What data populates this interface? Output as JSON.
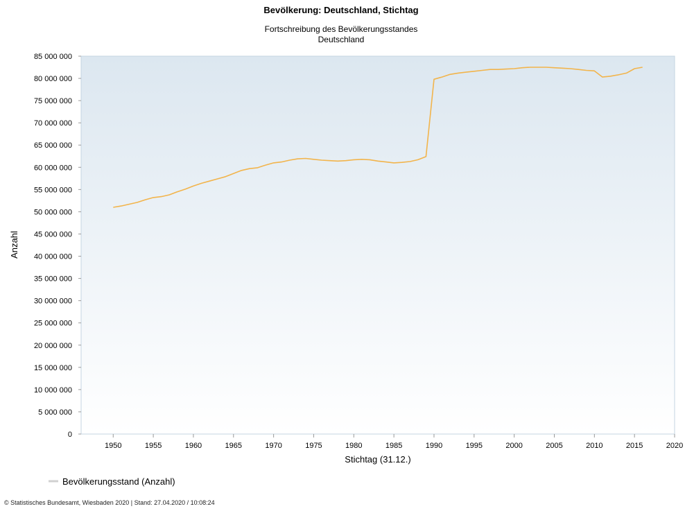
{
  "chart_data": {
    "type": "line",
    "title": "Bevölkerung: Deutschland, Stichtag",
    "subtitle_lines": [
      "Fortschreibung des Bevölkerungsstandes",
      "Deutschland"
    ],
    "xlabel": "Stichtag (31.12.)",
    "ylabel": "Anzahl",
    "xlim": [
      1946,
      2020
    ],
    "ylim": [
      0,
      85000000
    ],
    "x_ticks": [
      1950,
      1955,
      1960,
      1965,
      1970,
      1975,
      1980,
      1985,
      1990,
      1995,
      2000,
      2005,
      2010,
      2015,
      2020
    ],
    "y_ticks": [
      0,
      5000000,
      10000000,
      15000000,
      20000000,
      25000000,
      30000000,
      35000000,
      40000000,
      45000000,
      50000000,
      55000000,
      60000000,
      65000000,
      70000000,
      75000000,
      80000000,
      85000000
    ],
    "y_tick_labels": [
      "0",
      "5 000 000",
      "10 000 000",
      "15 000 000",
      "20 000 000",
      "25 000 000",
      "30 000 000",
      "35 000 000",
      "40 000 000",
      "45 000 000",
      "50 000 000",
      "55 000 000",
      "60 000 000",
      "65 000 000",
      "70 000 000",
      "75 000 000",
      "80 000 000",
      "85 000 000"
    ],
    "grid": false,
    "legend_position": "bottom-left",
    "series": [
      {
        "name": "Bevölkerungsstand (Anzahl)",
        "color": "#f2b44b",
        "x": [
          1950,
          1951,
          1952,
          1953,
          1954,
          1955,
          1956,
          1957,
          1958,
          1959,
          1960,
          1961,
          1962,
          1963,
          1964,
          1965,
          1966,
          1967,
          1968,
          1969,
          1970,
          1971,
          1972,
          1973,
          1974,
          1975,
          1976,
          1977,
          1978,
          1979,
          1980,
          1981,
          1982,
          1983,
          1984,
          1985,
          1986,
          1987,
          1988,
          1989,
          1990,
          1991,
          1992,
          1993,
          1994,
          1995,
          1996,
          1997,
          1998,
          1999,
          2000,
          2001,
          2002,
          2003,
          2004,
          2005,
          2006,
          2007,
          2008,
          2009,
          2010,
          2011,
          2012,
          2013,
          2014,
          2015,
          2016
        ],
        "values": [
          51000000,
          51300000,
          51700000,
          52100000,
          52700000,
          53200000,
          53400000,
          53800000,
          54500000,
          55100000,
          55800000,
          56400000,
          56900000,
          57400000,
          57900000,
          58600000,
          59300000,
          59700000,
          59900000,
          60500000,
          61000000,
          61200000,
          61600000,
          61900000,
          62000000,
          61800000,
          61600000,
          61500000,
          61400000,
          61500000,
          61700000,
          61800000,
          61700000,
          61400000,
          61200000,
          61000000,
          61100000,
          61300000,
          61700000,
          62400000,
          79800000,
          80300000,
          80900000,
          81200000,
          81400000,
          81600000,
          81800000,
          82000000,
          82000000,
          82100000,
          82200000,
          82400000,
          82500000,
          82500000,
          82500000,
          82400000,
          82300000,
          82200000,
          82000000,
          81800000,
          81700000,
          80300000,
          80500000,
          80800000,
          81200000,
          82200000,
          82500000
        ]
      }
    ]
  },
  "footer": {
    "source": "© Statistisches Bundesamt, Wiesbaden 2020 | Stand: 27.04.2020 / 10:08:24"
  }
}
